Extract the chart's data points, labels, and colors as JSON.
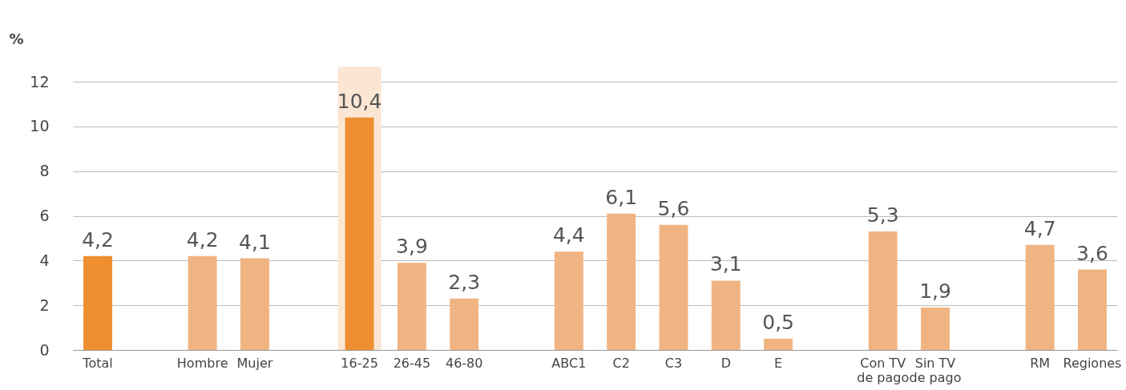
{
  "chart_data": {
    "type": "bar",
    "ylabel": "%",
    "categories": [
      "Total",
      null,
      "Hombre",
      "Mujer",
      null,
      "16-25",
      "26-45",
      "46-80",
      null,
      "ABC1",
      "C2",
      "C3",
      "D",
      "E",
      null,
      "Con TV\nde pago",
      "Sin TV\nde pago",
      null,
      "RM",
      "Regiones"
    ],
    "values": [
      4.2,
      null,
      4.2,
      4.1,
      null,
      10.4,
      3.9,
      2.3,
      null,
      4.4,
      6.1,
      5.6,
      3.1,
      0.5,
      null,
      5.3,
      1.9,
      null,
      4.7,
      3.6
    ],
    "value_labels": [
      "4,2",
      null,
      "4,2",
      "4,1",
      null,
      "10,4",
      "3,9",
      "2,3",
      null,
      "4,4",
      "6,1",
      "5,6",
      "3,1",
      "0,5",
      null,
      "5,3",
      "1,9",
      null,
      "4,7",
      "3,6"
    ],
    "colors": [
      "#ed8f31",
      null,
      "#f0b482",
      "#f0b482",
      null,
      "#ed8f31",
      "#f0b482",
      "#f0b482",
      null,
      "#f0b482",
      "#f0b482",
      "#f0b482",
      "#f0b482",
      "#f0b482",
      null,
      "#f0b482",
      "#f0b482",
      null,
      "#f0b482",
      "#f0b482"
    ],
    "bands": [
      {
        "axis": "x",
        "from": "16-25",
        "to": "16-25",
        "color": "#fbe6d3"
      }
    ],
    "ylim": [
      0,
      12
    ],
    "yticks": [
      0,
      2,
      4,
      6,
      8,
      10,
      12
    ],
    "grid": "y"
  }
}
